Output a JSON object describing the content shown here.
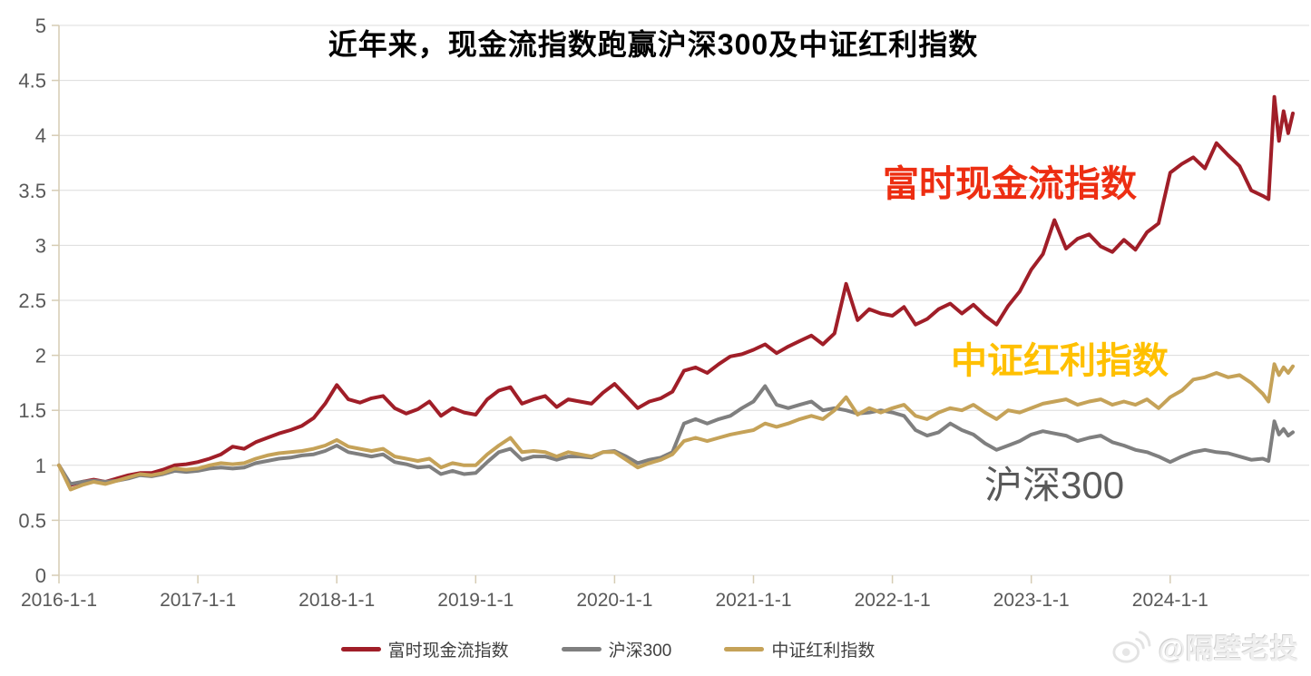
{
  "title": "近年来，现金流指数跑赢沪深300及中证红利指数",
  "colors": {
    "ftse_cashflow_line": "#A01E28",
    "csi300_line": "#7F7F7F",
    "dividend_line": "#C5A258",
    "annotation_red": "#ED2E12",
    "annotation_gold": "#FFC000",
    "annotation_gray": "#595959",
    "grid": "#DCDCDC",
    "axis": "#D6CCB4",
    "tick_text": "#595959"
  },
  "annotations": [
    {
      "text": "富时现金流指数",
      "color_key": "annotation_red"
    },
    {
      "text": "中证红利指数",
      "color_key": "annotation_gold"
    },
    {
      "text": "沪深300",
      "color_key": "annotation_gray"
    }
  ],
  "legend": {
    "items": [
      {
        "label": "富时现金流指数",
        "color_key": "ftse_cashflow_line"
      },
      {
        "label": "沪深300",
        "color_key": "csi300_line"
      },
      {
        "label": "中证红利指数",
        "color_key": "dividend_line"
      }
    ]
  },
  "watermark": {
    "handle": "@隔壁老投",
    "icon": "weibo-icon"
  },
  "chart_data": {
    "type": "line",
    "title": "近年来，现金流指数跑赢沪深300及中证红利指数",
    "xlabel": "",
    "ylabel": "",
    "x_unit": "months since 2016-01 (normalized index, 2016-1-1 = 1.0)",
    "grid": "horizontal",
    "legend_position": "bottom center",
    "y_domain": [
      0,
      5
    ],
    "x_domain_months": [
      0,
      108.3
    ],
    "yticks": [
      0,
      0.5,
      1,
      1.5,
      2,
      2.5,
      3,
      3.5,
      4,
      4.5,
      5
    ],
    "xticks": [
      {
        "pos": 0,
        "label": "2016-1-1"
      },
      {
        "pos": 12,
        "label": "2017-1-1"
      },
      {
        "pos": 24,
        "label": "2018-1-1"
      },
      {
        "pos": 36,
        "label": "2019-1-1"
      },
      {
        "pos": 48,
        "label": "2020-1-1"
      },
      {
        "pos": 60,
        "label": "2021-1-1"
      },
      {
        "pos": 72,
        "label": "2022-1-1"
      },
      {
        "pos": 84,
        "label": "2023-1-1"
      },
      {
        "pos": 96,
        "label": "2024-1-1"
      }
    ],
    "x": [
      0,
      1,
      2,
      3,
      4,
      5,
      6,
      7,
      8,
      9,
      10,
      11,
      12,
      13,
      14,
      15,
      16,
      17,
      18,
      19,
      20,
      21,
      22,
      23,
      24,
      25,
      26,
      27,
      28,
      29,
      30,
      31,
      32,
      33,
      34,
      35,
      36,
      37,
      38,
      39,
      40,
      41,
      42,
      43,
      44,
      45,
      46,
      47,
      48,
      49,
      50,
      51,
      52,
      53,
      54,
      55,
      56,
      57,
      58,
      59,
      60,
      61,
      62,
      63,
      64,
      65,
      66,
      67,
      68,
      69,
      70,
      71,
      72,
      73,
      74,
      75,
      76,
      77,
      78,
      79,
      80,
      81,
      82,
      83,
      84,
      85,
      86,
      87,
      88,
      89,
      90,
      91,
      92,
      93,
      94,
      95,
      96,
      97,
      98,
      99,
      100,
      101,
      102,
      103,
      104,
      104.5,
      105,
      105.4,
      105.8,
      106.2,
      106.6
    ],
    "series": [
      {
        "name": "富时现金流指数",
        "color_key": "ftse_cashflow_line",
        "values": [
          1.0,
          0.82,
          0.85,
          0.87,
          0.85,
          0.88,
          0.91,
          0.93,
          0.93,
          0.96,
          1.0,
          1.01,
          1.03,
          1.06,
          1.1,
          1.17,
          1.15,
          1.21,
          1.25,
          1.29,
          1.32,
          1.36,
          1.43,
          1.56,
          1.73,
          1.6,
          1.57,
          1.61,
          1.63,
          1.52,
          1.47,
          1.51,
          1.58,
          1.45,
          1.52,
          1.48,
          1.46,
          1.6,
          1.68,
          1.71,
          1.56,
          1.6,
          1.63,
          1.53,
          1.6,
          1.58,
          1.56,
          1.66,
          1.74,
          1.63,
          1.52,
          1.58,
          1.61,
          1.67,
          1.86,
          1.89,
          1.84,
          1.92,
          1.99,
          2.01,
          2.05,
          2.1,
          2.02,
          2.08,
          2.13,
          2.18,
          2.1,
          2.2,
          2.65,
          2.32,
          2.42,
          2.38,
          2.36,
          2.44,
          2.28,
          2.33,
          2.42,
          2.47,
          2.38,
          2.46,
          2.36,
          2.28,
          2.45,
          2.58,
          2.78,
          2.92,
          3.23,
          2.97,
          3.06,
          3.1,
          2.99,
          2.94,
          3.05,
          2.96,
          3.12,
          3.2,
          3.66,
          3.74,
          3.8,
          3.7,
          3.93,
          3.82,
          3.72,
          3.5,
          3.45,
          3.42,
          4.35,
          3.95,
          4.22,
          4.02,
          4.2
        ]
      },
      {
        "name": "沪深300",
        "color_key": "csi300_line",
        "values": [
          1.0,
          0.83,
          0.85,
          0.86,
          0.85,
          0.86,
          0.88,
          0.91,
          0.9,
          0.92,
          0.95,
          0.94,
          0.95,
          0.97,
          0.98,
          0.97,
          0.98,
          1.02,
          1.04,
          1.06,
          1.07,
          1.09,
          1.1,
          1.13,
          1.18,
          1.12,
          1.1,
          1.08,
          1.1,
          1.03,
          1.01,
          0.98,
          0.99,
          0.92,
          0.95,
          0.92,
          0.93,
          1.03,
          1.12,
          1.15,
          1.05,
          1.08,
          1.08,
          1.05,
          1.08,
          1.08,
          1.07,
          1.12,
          1.13,
          1.08,
          1.02,
          1.05,
          1.07,
          1.12,
          1.38,
          1.42,
          1.38,
          1.42,
          1.45,
          1.52,
          1.58,
          1.72,
          1.55,
          1.52,
          1.55,
          1.58,
          1.5,
          1.52,
          1.5,
          1.47,
          1.48,
          1.5,
          1.48,
          1.45,
          1.32,
          1.27,
          1.3,
          1.38,
          1.32,
          1.28,
          1.2,
          1.14,
          1.18,
          1.22,
          1.28,
          1.31,
          1.29,
          1.27,
          1.22,
          1.25,
          1.27,
          1.21,
          1.18,
          1.14,
          1.12,
          1.08,
          1.03,
          1.08,
          1.12,
          1.14,
          1.12,
          1.11,
          1.08,
          1.05,
          1.06,
          1.04,
          1.4,
          1.28,
          1.33,
          1.27,
          1.3
        ]
      },
      {
        "name": "中证红利指数",
        "color_key": "dividend_line",
        "values": [
          1.0,
          0.78,
          0.82,
          0.85,
          0.83,
          0.86,
          0.89,
          0.92,
          0.91,
          0.93,
          0.97,
          0.96,
          0.97,
          1.0,
          1.02,
          1.01,
          1.02,
          1.06,
          1.09,
          1.11,
          1.12,
          1.13,
          1.15,
          1.18,
          1.23,
          1.17,
          1.15,
          1.13,
          1.15,
          1.08,
          1.06,
          1.04,
          1.06,
          0.98,
          1.02,
          1.0,
          1.0,
          1.1,
          1.18,
          1.25,
          1.12,
          1.13,
          1.12,
          1.08,
          1.12,
          1.1,
          1.08,
          1.12,
          1.12,
          1.05,
          0.98,
          1.02,
          1.05,
          1.1,
          1.22,
          1.25,
          1.22,
          1.25,
          1.28,
          1.3,
          1.32,
          1.38,
          1.35,
          1.38,
          1.42,
          1.45,
          1.42,
          1.5,
          1.62,
          1.46,
          1.52,
          1.48,
          1.52,
          1.55,
          1.45,
          1.42,
          1.48,
          1.52,
          1.5,
          1.55,
          1.48,
          1.42,
          1.5,
          1.48,
          1.52,
          1.56,
          1.58,
          1.6,
          1.55,
          1.58,
          1.6,
          1.55,
          1.58,
          1.55,
          1.6,
          1.52,
          1.62,
          1.68,
          1.78,
          1.8,
          1.84,
          1.8,
          1.82,
          1.75,
          1.65,
          1.58,
          1.92,
          1.82,
          1.89,
          1.84,
          1.9
        ]
      }
    ]
  }
}
